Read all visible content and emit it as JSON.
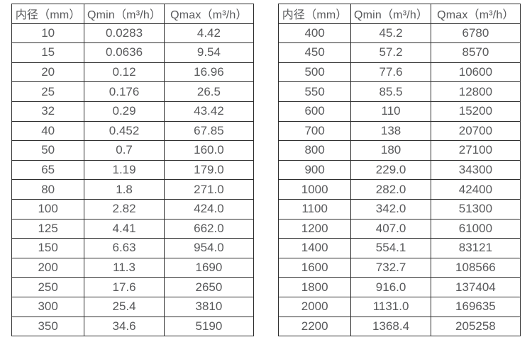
{
  "colors": {
    "border": "#2e2e2e",
    "text": "#58595b",
    "background": "#ffffff"
  },
  "tables": [
    {
      "name": "flow-table-small-diameters",
      "headers": [
        "内径（mm）",
        "Qmin（m³/h）",
        "Qmax（m³/h）"
      ],
      "rows": [
        [
          "10",
          "0.0283",
          "4.42"
        ],
        [
          "15",
          "0.0636",
          "9.54"
        ],
        [
          "20",
          "0.12",
          "16.96"
        ],
        [
          "25",
          "0.176",
          "26.5"
        ],
        [
          "32",
          "0.29",
          "43.42"
        ],
        [
          "40",
          "0.452",
          "67.85"
        ],
        [
          "50",
          "0.7",
          "160.0"
        ],
        [
          "65",
          "1.19",
          "179.0"
        ],
        [
          "80",
          "1.8",
          "271.0"
        ],
        [
          "100",
          "2.82",
          "424.0"
        ],
        [
          "125",
          "4.41",
          "662.0"
        ],
        [
          "150",
          "6.63",
          "954.0"
        ],
        [
          "200",
          "11.3",
          "1690"
        ],
        [
          "250",
          "17.6",
          "2650"
        ],
        [
          "300",
          "25.4",
          "3810"
        ],
        [
          "350",
          "34.6",
          "5190"
        ]
      ]
    },
    {
      "name": "flow-table-large-diameters",
      "headers": [
        "内径（mm）",
        "Qmin（m³/h）",
        "Qmax（m³/h）"
      ],
      "rows": [
        [
          "400",
          "45.2",
          "6780"
        ],
        [
          "450",
          "57.2",
          "8570"
        ],
        [
          "500",
          "77.6",
          "10600"
        ],
        [
          "550",
          "85.5",
          "12800"
        ],
        [
          "600",
          "110",
          "15200"
        ],
        [
          "700",
          "138",
          "20700"
        ],
        [
          "800",
          "180",
          "27100"
        ],
        [
          "900",
          "229.0",
          "34300"
        ],
        [
          "1000",
          "282.0",
          "42400"
        ],
        [
          "1100",
          "342.0",
          "51300"
        ],
        [
          "1200",
          "407.0",
          "61000"
        ],
        [
          "1400",
          "554.1",
          "83121"
        ],
        [
          "1600",
          "732.7",
          "108566"
        ],
        [
          "1800",
          "916.0",
          "137404"
        ],
        [
          "2000",
          "1131.0",
          "169635"
        ],
        [
          "2200",
          "1368.4",
          "205258"
        ]
      ]
    }
  ]
}
